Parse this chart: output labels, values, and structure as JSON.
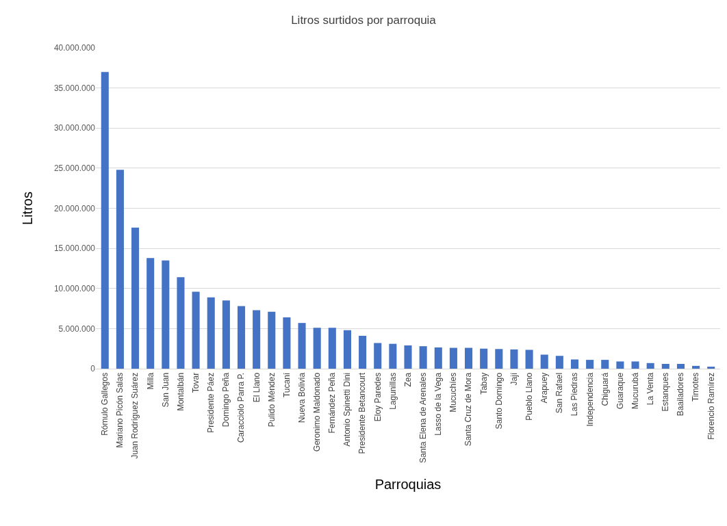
{
  "chart_data": {
    "type": "bar",
    "title": "Litros surtidos por parroquia",
    "xlabel": "Parroquias",
    "ylabel": "Litros",
    "categories": [
      "Rómulo Gallegos",
      "Mariano Picón Salas",
      "Juan Rodríguez Suárez",
      "Milla",
      "San Juan",
      "Montalbán",
      "Tovar",
      "Presidente Páez",
      "Domingo Peña",
      "Caracciolo Parra P.",
      "El Llano",
      "Pulido Méndez",
      "Tucaní",
      "Nueva Bolivia",
      "Geronimo Maldonado",
      "Fernández Peña",
      "Antonio Spinetti Dini",
      "Presidente Betancourt",
      "Eloy Paredes",
      "Lagunillas",
      "Zea",
      "Santa Elena de Arenales",
      "Lasso de la Vega",
      "Mucuchíes",
      "Santa Cruz de Mora",
      "Tabay",
      "Santo Domingo",
      "Jají",
      "Pueblo Llano",
      "Arapuey",
      "San Rafael",
      "Las Piedras",
      "Independencia",
      "Chiguará",
      "Guaraque",
      "Mucurubá",
      "La Venta",
      "Estanques",
      "Baailadores",
      "Timotes",
      "Florencio Ramírez"
    ],
    "values": [
      37000000,
      24800000,
      17600000,
      13800000,
      13500000,
      11400000,
      9600000,
      8900000,
      8500000,
      7800000,
      7300000,
      7100000,
      6400000,
      5700000,
      5100000,
      5100000,
      4800000,
      4100000,
      3200000,
      3100000,
      2900000,
      2800000,
      2650000,
      2600000,
      2600000,
      2500000,
      2450000,
      2400000,
      2350000,
      1750000,
      1600000,
      1150000,
      1100000,
      1100000,
      900000,
      900000,
      700000,
      600000,
      600000,
      350000,
      250000
    ],
    "color": "#4472c4",
    "ylim": [
      0,
      40000000
    ],
    "yticks": [
      {
        "value": 0,
        "label": "0"
      },
      {
        "value": 5000000,
        "label": "5.000.000"
      },
      {
        "value": 10000000,
        "label": "10.000.000"
      },
      {
        "value": 15000000,
        "label": "15.000.000"
      },
      {
        "value": 20000000,
        "label": "20.000.000"
      },
      {
        "value": 25000000,
        "label": "25.000.000"
      },
      {
        "value": 30000000,
        "label": "30.000.000"
      },
      {
        "value": 35000000,
        "label": "35.000.000"
      },
      {
        "value": 40000000,
        "label": "40.000.000"
      }
    ],
    "grid": "y"
  }
}
